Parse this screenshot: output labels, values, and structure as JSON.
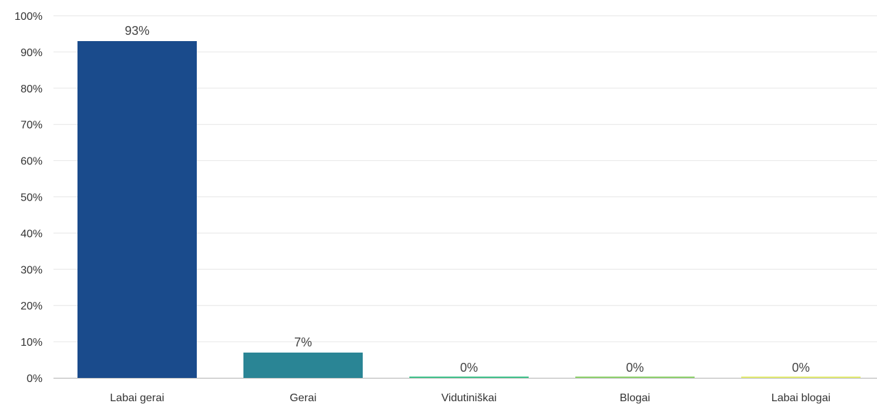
{
  "chart_data": {
    "type": "bar",
    "categories": [
      "Labai gerai",
      "Gerai",
      "Vidutiniškai",
      "Blogai",
      "Labai blogai"
    ],
    "values": [
      93,
      7,
      0,
      0,
      0
    ],
    "data_labels": [
      "93%",
      "7%",
      "0%",
      "0%",
      "0%"
    ],
    "bar_colors": [
      "#1a4b8c",
      "#2a8595",
      "#3ec28a",
      "#8dd16a",
      "#e3ec6e"
    ],
    "ylim": [
      0,
      100
    ],
    "yticks": [
      0,
      10,
      20,
      30,
      40,
      50,
      60,
      70,
      80,
      90,
      100
    ],
    "ytick_labels": [
      "0%",
      "10%",
      "20%",
      "30%",
      "40%",
      "50%",
      "60%",
      "70%",
      "80%",
      "90%",
      "100%"
    ],
    "grid": true,
    "legend": "none"
  }
}
